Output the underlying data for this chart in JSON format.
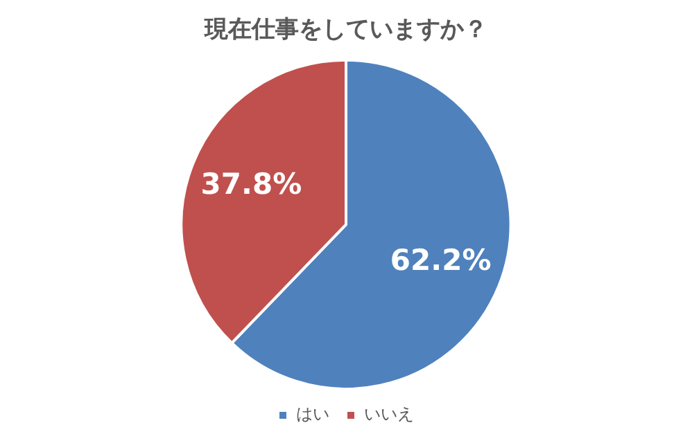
{
  "chart_data": {
    "type": "pie",
    "title": "現在仕事をしていますか？",
    "categories": [
      "はい",
      "いいえ"
    ],
    "values": [
      62.2,
      37.8
    ],
    "colors": [
      "#4f81bd",
      "#c0504d"
    ],
    "value_labels": [
      "62.2%",
      "37.8%"
    ],
    "legend": "bottom"
  }
}
